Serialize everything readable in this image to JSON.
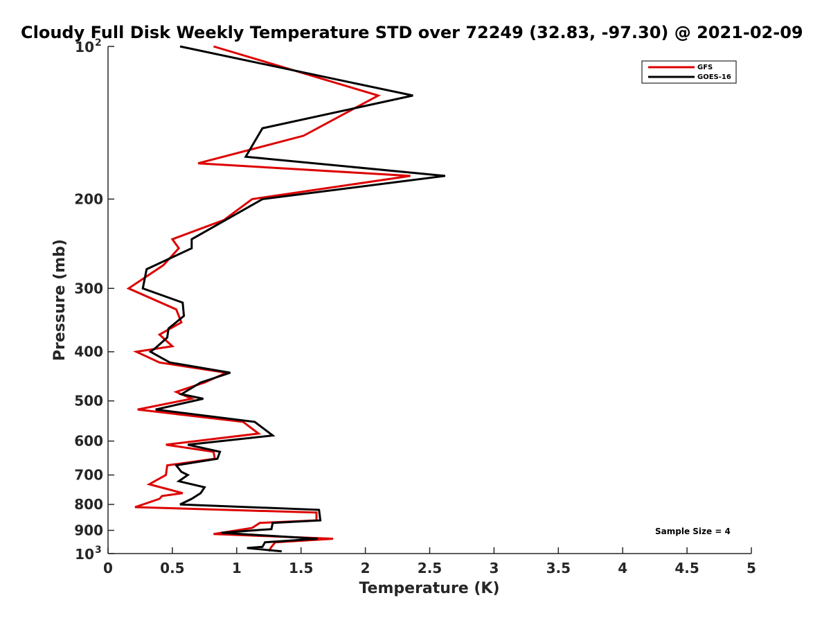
{
  "chart_data": {
    "type": "line",
    "title": "Cloudy Full Disk Weekly Temperature STD over 72249 (32.83, -97.30) @ 2021-02-09",
    "xlabel": "Temperature (K)",
    "ylabel": "Pressure (mb)",
    "xlim": [
      0,
      5
    ],
    "ylim": [
      100,
      1000
    ],
    "y_scale": "log",
    "y_reversed": true,
    "grid": false,
    "legend_position": "top-right",
    "x_ticks": [
      {
        "value": 0,
        "label": "0"
      },
      {
        "value": 0.5,
        "label": "0.5"
      },
      {
        "value": 1,
        "label": "1"
      },
      {
        "value": 1.5,
        "label": "1.5"
      },
      {
        "value": 2,
        "label": "2"
      },
      {
        "value": 2.5,
        "label": "2.5"
      },
      {
        "value": 3,
        "label": "3"
      },
      {
        "value": 3.5,
        "label": "3.5"
      },
      {
        "value": 4,
        "label": "4"
      },
      {
        "value": 4.5,
        "label": "4.5"
      },
      {
        "value": 5,
        "label": "5"
      }
    ],
    "y_ticks": [
      {
        "value": 100,
        "base": "10",
        "exp": "2"
      },
      {
        "value": 200,
        "label": "200"
      },
      {
        "value": 300,
        "label": "300"
      },
      {
        "value": 400,
        "label": "400"
      },
      {
        "value": 500,
        "label": "500"
      },
      {
        "value": 600,
        "label": "600"
      },
      {
        "value": 700,
        "label": "700"
      },
      {
        "value": 800,
        "label": "800"
      },
      {
        "value": 900,
        "label": "900"
      },
      {
        "value": 1000,
        "base": "10",
        "exp": "3"
      }
    ],
    "annotation": "Sample Size = 4",
    "series": [
      {
        "name": "GFS",
        "color": "#dd0000",
        "points": [
          [
            0.82,
            100
          ],
          [
            2.1,
            125
          ],
          [
            1.52,
            150
          ],
          [
            0.7,
            170
          ],
          [
            2.35,
            180
          ],
          [
            1.12,
            200
          ],
          [
            0.9,
            220
          ],
          [
            0.5,
            240
          ],
          [
            0.55,
            250
          ],
          [
            0.43,
            270
          ],
          [
            0.16,
            300
          ],
          [
            0.53,
            330
          ],
          [
            0.57,
            350
          ],
          [
            0.4,
            370
          ],
          [
            0.5,
            390
          ],
          [
            0.22,
            400
          ],
          [
            0.4,
            420
          ],
          [
            0.92,
            440
          ],
          [
            0.75,
            460
          ],
          [
            0.53,
            480
          ],
          [
            0.65,
            495
          ],
          [
            0.23,
            520
          ],
          [
            1.05,
            550
          ],
          [
            1.17,
            580
          ],
          [
            0.45,
            610
          ],
          [
            0.82,
            630
          ],
          [
            0.83,
            650
          ],
          [
            0.46,
            670
          ],
          [
            0.45,
            700
          ],
          [
            0.32,
            730
          ],
          [
            0.58,
            760
          ],
          [
            0.42,
            770
          ],
          [
            0.4,
            780
          ],
          [
            0.21,
            810
          ],
          [
            1.62,
            830
          ],
          [
            1.62,
            860
          ],
          [
            1.18,
            870
          ],
          [
            1.12,
            890
          ],
          [
            0.82,
            915
          ],
          [
            1.75,
            935
          ],
          [
            1.3,
            950
          ],
          [
            1.27,
            970
          ],
          [
            1.25,
            990
          ]
        ]
      },
      {
        "name": "GOES-16",
        "color": "#000000",
        "points": [
          [
            0.56,
            100
          ],
          [
            2.37,
            125
          ],
          [
            1.2,
            145
          ],
          [
            1.07,
            165
          ],
          [
            2.62,
            180
          ],
          [
            1.2,
            200
          ],
          [
            0.65,
            240
          ],
          [
            0.65,
            250
          ],
          [
            0.3,
            275
          ],
          [
            0.27,
            300
          ],
          [
            0.58,
            320
          ],
          [
            0.59,
            340
          ],
          [
            0.47,
            360
          ],
          [
            0.46,
            375
          ],
          [
            0.36,
            395
          ],
          [
            0.33,
            400
          ],
          [
            0.48,
            420
          ],
          [
            0.95,
            440
          ],
          [
            0.72,
            460
          ],
          [
            0.57,
            485
          ],
          [
            0.74,
            495
          ],
          [
            0.37,
            520
          ],
          [
            1.14,
            550
          ],
          [
            1.28,
            585
          ],
          [
            0.62,
            610
          ],
          [
            0.87,
            630
          ],
          [
            0.85,
            650
          ],
          [
            0.53,
            670
          ],
          [
            0.57,
            690
          ],
          [
            0.62,
            700
          ],
          [
            0.55,
            720
          ],
          [
            0.75,
            740
          ],
          [
            0.72,
            760
          ],
          [
            0.65,
            780
          ],
          [
            0.56,
            800
          ],
          [
            1.64,
            820
          ],
          [
            1.65,
            860
          ],
          [
            1.28,
            870
          ],
          [
            1.27,
            895
          ],
          [
            0.88,
            910
          ],
          [
            1.63,
            935
          ],
          [
            1.22,
            950
          ],
          [
            1.2,
            970
          ],
          [
            1.08,
            975
          ],
          [
            1.35,
            990
          ]
        ]
      }
    ]
  }
}
